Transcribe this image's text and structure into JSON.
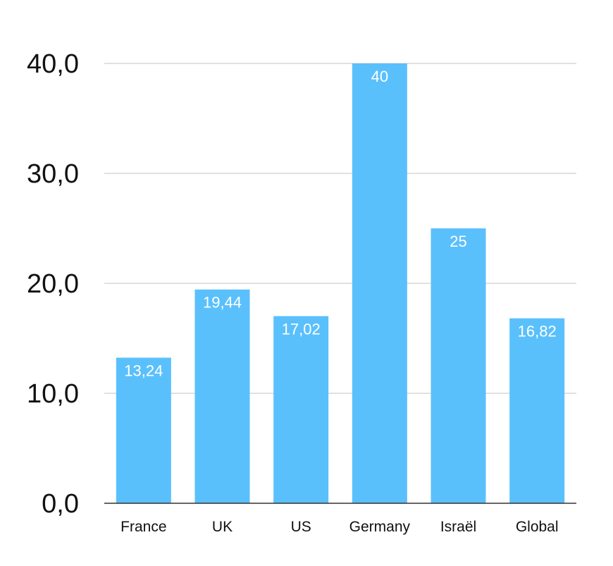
{
  "chart_data": {
    "type": "bar",
    "categories": [
      "France",
      "UK",
      "US",
      "Germany",
      "Israël",
      "Global"
    ],
    "values": [
      13.24,
      19.44,
      17.02,
      40,
      25,
      16.82
    ],
    "value_labels": [
      "13,24",
      "19,44",
      "17,02",
      "40",
      "25",
      "16,82"
    ],
    "ylim": [
      0,
      40
    ],
    "yticks": [
      0,
      10,
      20,
      30,
      40
    ],
    "ytick_labels": [
      "0,0",
      "10,0",
      "20,0",
      "30,0",
      "40,0"
    ],
    "grid": true,
    "bar_color": "#5ac0fc",
    "title": "",
    "xlabel": "",
    "ylabel": ""
  }
}
